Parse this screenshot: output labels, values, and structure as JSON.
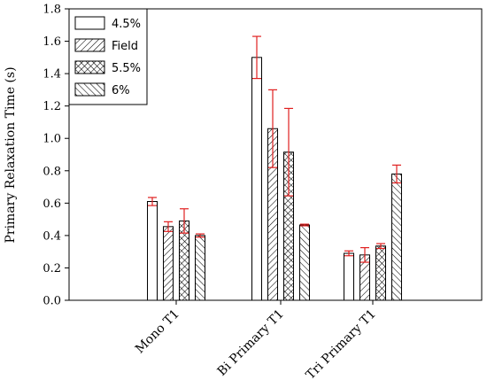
{
  "chart_data": {
    "type": "bar",
    "title": "",
    "xlabel": "",
    "ylabel": "Primary Relaxation Time (s)",
    "ylim": [
      0,
      1.8
    ],
    "yticks": [
      "0.0",
      "0.2",
      "0.4",
      "0.6",
      "0.8",
      "1.0",
      "1.2",
      "1.4",
      "1.6",
      "1.8"
    ],
    "categories": [
      "Mono T1",
      "Bi Primary T1",
      "Tri Primary T1"
    ],
    "series": [
      {
        "name": "4.5%",
        "pattern": "white",
        "values": [
          0.61,
          1.5,
          0.29
        ],
        "errors": [
          0.025,
          0.13,
          0.015
        ]
      },
      {
        "name": "Field",
        "pattern": "diag-right",
        "values": [
          0.455,
          1.06,
          0.28
        ],
        "errors": [
          0.03,
          0.24,
          0.045
        ]
      },
      {
        "name": "5.5%",
        "pattern": "crosshatch",
        "values": [
          0.49,
          0.915,
          0.335
        ],
        "errors": [
          0.075,
          0.27,
          0.015
        ]
      },
      {
        "name": "6%",
        "pattern": "diag-left",
        "values": [
          0.4,
          0.465,
          0.78
        ],
        "errors": [
          0.01,
          0.005,
          0.055
        ]
      }
    ],
    "error_bar_color": "#e02020",
    "legend_position": "top-left",
    "grid": false
  }
}
